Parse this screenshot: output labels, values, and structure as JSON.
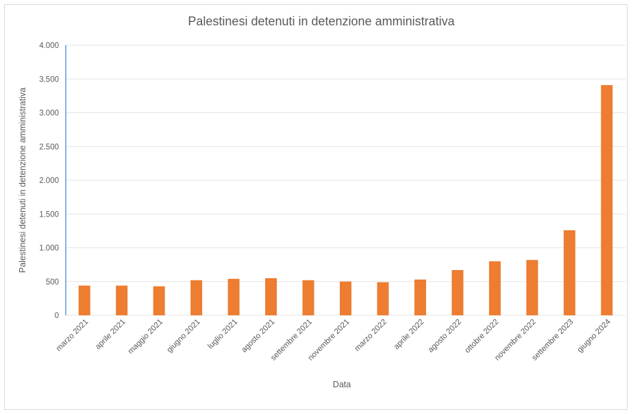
{
  "chart_data": {
    "type": "bar",
    "title": "Palestinesi detenuti in detenzione amministrativa",
    "xlabel": "Data",
    "ylabel": "Palestinesi detenuti in detenzione amministrativa",
    "categories": [
      "marzo 2021",
      "aprile 2021",
      "maggio 2021",
      "giugno 2021",
      "luglio 2021",
      "agosto 2021",
      "settembre 2021",
      "novembre 2021",
      "marzo 2022",
      "aprile 2022",
      "agosto 2022",
      "ottobre 2022",
      "novembre 2022",
      "settembre 2023",
      "giugno 2024"
    ],
    "values": [
      440,
      440,
      430,
      520,
      540,
      550,
      520,
      500,
      490,
      530,
      670,
      800,
      820,
      1260,
      3410
    ],
    "ylim": [
      0,
      4000
    ],
    "yticks": [
      0,
      500,
      1000,
      1500,
      2000,
      2500,
      3000,
      3500,
      4000
    ],
    "ytick_labels": [
      "0",
      "500",
      "1.000",
      "1.500",
      "2.000",
      "2.500",
      "3.000",
      "3.500",
      "4.000"
    ],
    "grid": true,
    "colors": {
      "bar": "#ED7D31",
      "y_axis_line": "#5B9BD5"
    }
  }
}
